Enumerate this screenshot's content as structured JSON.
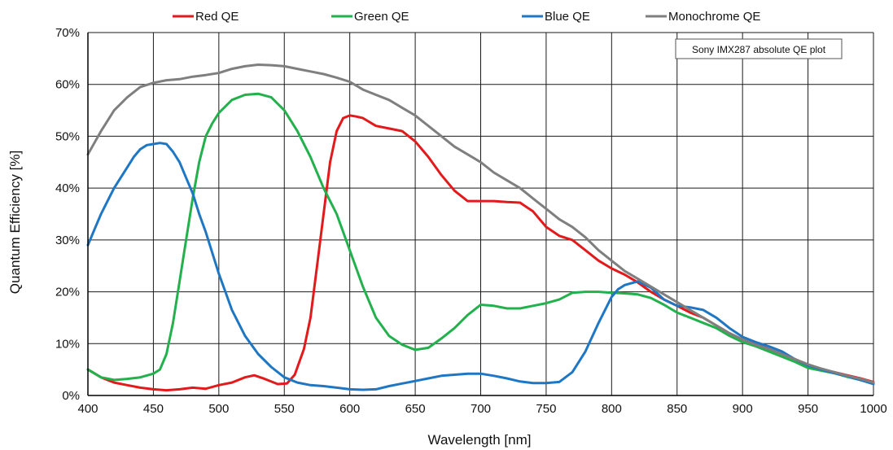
{
  "chart_data": {
    "type": "line",
    "title": "",
    "xlabel": "Wavelength [nm]",
    "ylabel": "Quantum Efficiency [%]",
    "xlim": [
      400,
      1000
    ],
    "ylim": [
      0,
      70
    ],
    "x_ticks": [
      400,
      450,
      500,
      550,
      600,
      650,
      700,
      750,
      800,
      850,
      900,
      950,
      1000
    ],
    "x_tick_labels": [
      "400",
      "450",
      "500",
      "550",
      "600",
      "650",
      "700",
      "750",
      "800",
      "850",
      "900",
      "950",
      "1000"
    ],
    "y_ticks": [
      0,
      10,
      20,
      30,
      40,
      50,
      60,
      70
    ],
    "y_tick_labels": [
      "0%",
      "10%",
      "20%",
      "30%",
      "40%",
      "50%",
      "60%",
      "70%"
    ],
    "grid": true,
    "legend_position": "top",
    "annotation": "Sony IMX287 absolute QE plot",
    "series": [
      {
        "name": "Red QE",
        "color": "#e31a1c",
        "x": [
          400,
          410,
          420,
          430,
          440,
          450,
          460,
          470,
          480,
          490,
          500,
          510,
          520,
          527,
          535,
          545,
          552,
          558,
          565,
          570,
          575,
          580,
          585,
          590,
          595,
          600,
          605,
          610,
          620,
          630,
          640,
          650,
          660,
          670,
          680,
          690,
          700,
          710,
          720,
          730,
          740,
          750,
          760,
          770,
          780,
          790,
          800,
          810,
          820,
          830,
          840,
          850,
          860,
          870,
          880,
          890,
          900,
          910,
          920,
          930,
          940,
          950,
          960,
          970,
          980,
          990,
          1000
        ],
        "y": [
          5,
          3.5,
          2.5,
          2,
          1.5,
          1.2,
          1,
          1.2,
          1.5,
          1.3,
          2,
          2.5,
          3.5,
          3.9,
          3.2,
          2.2,
          2.3,
          4,
          9,
          15,
          25,
          35,
          45,
          51,
          53.5,
          54,
          53.8,
          53.5,
          52,
          51.5,
          51,
          49,
          46,
          42.5,
          39.5,
          37.5,
          37.5,
          37.5,
          37.3,
          37.2,
          35.5,
          32.5,
          30.8,
          30,
          28,
          26,
          24.5,
          23.3,
          21.8,
          20,
          18.5,
          17.3,
          16,
          15,
          13.5,
          12,
          10.8,
          10,
          9,
          8,
          7,
          5.8,
          5,
          4.5,
          3.9,
          3.3,
          2.6
        ]
      },
      {
        "name": "Green QE",
        "color": "#22b14c",
        "x": [
          400,
          410,
          420,
          430,
          440,
          450,
          455,
          460,
          465,
          470,
          475,
          480,
          485,
          490,
          495,
          500,
          510,
          520,
          530,
          540,
          550,
          560,
          570,
          580,
          590,
          600,
          610,
          620,
          630,
          640,
          650,
          660,
          670,
          680,
          690,
          700,
          710,
          720,
          730,
          740,
          750,
          760,
          770,
          780,
          790,
          800,
          810,
          820,
          830,
          840,
          850,
          860,
          870,
          880,
          890,
          900,
          910,
          920,
          930,
          940,
          950,
          960,
          970,
          980,
          990,
          1000
        ],
        "y": [
          5,
          3.5,
          3,
          3.2,
          3.5,
          4.2,
          5,
          8,
          14,
          22,
          30,
          38,
          45,
          50,
          52.5,
          54.5,
          57,
          58,
          58.2,
          57.5,
          55,
          51,
          46,
          40,
          35,
          28,
          21,
          15,
          11.5,
          9.8,
          8.8,
          9.2,
          11,
          13,
          15.5,
          17.5,
          17.3,
          16.8,
          16.8,
          17.3,
          17.8,
          18.5,
          19.8,
          20,
          20,
          19.8,
          19.7,
          19.5,
          18.8,
          17.5,
          16,
          15,
          14,
          13,
          11.5,
          10.3,
          9.5,
          8.5,
          7.5,
          6.5,
          5.3,
          4.8,
          4.3,
          3.6,
          3,
          2.3
        ]
      },
      {
        "name": "Blue QE",
        "color": "#1f77c4",
        "x": [
          400,
          405,
          410,
          415,
          420,
          425,
          430,
          435,
          440,
          445,
          450,
          455,
          460,
          465,
          470,
          475,
          480,
          485,
          490,
          495,
          500,
          505,
          510,
          520,
          530,
          540,
          550,
          560,
          570,
          580,
          590,
          600,
          610,
          620,
          630,
          640,
          650,
          660,
          670,
          680,
          690,
          700,
          710,
          720,
          730,
          740,
          750,
          760,
          770,
          780,
          790,
          800,
          805,
          810,
          820,
          830,
          840,
          850,
          860,
          870,
          880,
          890,
          900,
          910,
          920,
          930,
          940,
          950,
          960,
          970,
          980,
          990,
          1000
        ],
        "y": [
          29,
          32,
          35,
          37.5,
          40,
          42,
          44,
          46,
          47.5,
          48.3,
          48.5,
          48.7,
          48.5,
          47,
          45,
          42,
          39,
          35,
          31.5,
          27.5,
          23.5,
          20,
          16.5,
          11.5,
          8,
          5.5,
          3.5,
          2.5,
          2,
          1.8,
          1.5,
          1.2,
          1.1,
          1.2,
          1.8,
          2.3,
          2.8,
          3.3,
          3.8,
          4,
          4.2,
          4.2,
          3.8,
          3.3,
          2.7,
          2.4,
          2.4,
          2.6,
          4.5,
          8.5,
          14,
          19,
          20.5,
          21.3,
          22,
          20.8,
          18.5,
          17.3,
          17,
          16.5,
          15,
          13,
          11.3,
          10.3,
          9.5,
          8.5,
          7,
          5.8,
          5,
          4.3,
          3.7,
          3,
          2.2
        ]
      },
      {
        "name": "Monochrome QE",
        "color": "#7f7f7f",
        "x": [
          400,
          410,
          420,
          430,
          440,
          450,
          460,
          470,
          480,
          490,
          500,
          510,
          520,
          530,
          540,
          550,
          560,
          570,
          580,
          590,
          600,
          610,
          620,
          630,
          640,
          650,
          660,
          670,
          680,
          690,
          700,
          710,
          720,
          730,
          740,
          750,
          760,
          770,
          780,
          790,
          800,
          810,
          820,
          830,
          840,
          850,
          860,
          870,
          880,
          890,
          900,
          910,
          920,
          930,
          940,
          950,
          960,
          970,
          980,
          990,
          1000
        ],
        "y": [
          46.5,
          51,
          55,
          57.5,
          59.5,
          60.3,
          60.8,
          61,
          61.5,
          61.8,
          62.2,
          63,
          63.5,
          63.8,
          63.7,
          63.5,
          63,
          62.5,
          62,
          61.3,
          60.5,
          59,
          58,
          57,
          55.5,
          54,
          52,
          50,
          48,
          46.5,
          45,
          43,
          41.5,
          40,
          38,
          36,
          34,
          32.5,
          30.5,
          28,
          26,
          24,
          22.5,
          21,
          19.5,
          18,
          16.5,
          15,
          13.5,
          12,
          10.8,
          9.8,
          9,
          8,
          7,
          6,
          5.2,
          4.5,
          3.8,
          3.2,
          2.5
        ]
      }
    ]
  }
}
